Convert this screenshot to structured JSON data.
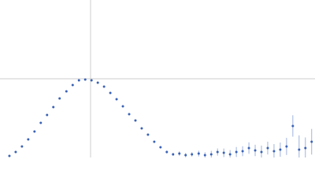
{
  "chart_data": {
    "type": "scatter",
    "x": [
      0.18,
      0.3,
      0.42,
      0.54,
      0.66,
      0.78,
      0.9,
      1.02,
      1.14,
      1.27,
      1.39,
      1.51,
      1.63,
      1.75,
      1.87,
      1.99,
      2.11,
      2.23,
      2.35,
      2.47,
      2.59,
      2.71,
      2.83,
      2.95,
      3.07,
      3.19,
      3.31,
      3.43,
      3.55,
      3.67,
      3.8,
      3.92,
      4.04,
      4.16,
      4.28,
      4.4,
      4.52,
      4.64,
      4.76,
      4.88,
      5.0,
      5.12,
      5.24,
      5.36,
      5.48,
      5.6,
      5.72,
      5.84,
      5.96
    ],
    "values": [
      0.022,
      0.077,
      0.155,
      0.254,
      0.364,
      0.486,
      0.596,
      0.706,
      0.828,
      0.927,
      1.015,
      1.082,
      1.093,
      1.082,
      1.049,
      0.993,
      0.905,
      0.817,
      0.717,
      0.607,
      0.519,
      0.408,
      0.32,
      0.221,
      0.143,
      0.077,
      0.044,
      0.055,
      0.033,
      0.044,
      0.055,
      0.033,
      0.044,
      0.077,
      0.066,
      0.044,
      0.077,
      0.088,
      0.132,
      0.099,
      0.077,
      0.132,
      0.088,
      0.11,
      0.155,
      0.442,
      0.11,
      0.132,
      0.221
    ],
    "errors": [
      0.005,
      0.005,
      0.005,
      0.005,
      0.005,
      0.005,
      0.005,
      0.005,
      0.005,
      0.005,
      0.005,
      0.005,
      0.005,
      0.008,
      0.008,
      0.008,
      0.008,
      0.008,
      0.008,
      0.008,
      0.008,
      0.008,
      0.008,
      0.008,
      0.008,
      0.02,
      0.02,
      0.03,
      0.03,
      0.03,
      0.04,
      0.04,
      0.05,
      0.05,
      0.06,
      0.06,
      0.07,
      0.07,
      0.08,
      0.08,
      0.09,
      0.09,
      0.1,
      0.1,
      0.12,
      0.15,
      0.2,
      0.15,
      0.18
    ],
    "color": "#3a62b5",
    "error_color": "#9fb3dd",
    "xlim": [
      0,
      6.024
    ],
    "ylim": [
      0,
      2.208
    ],
    "x_guide": 1.732,
    "y_guide": 1.104,
    "guide_color": "#cccccc"
  }
}
